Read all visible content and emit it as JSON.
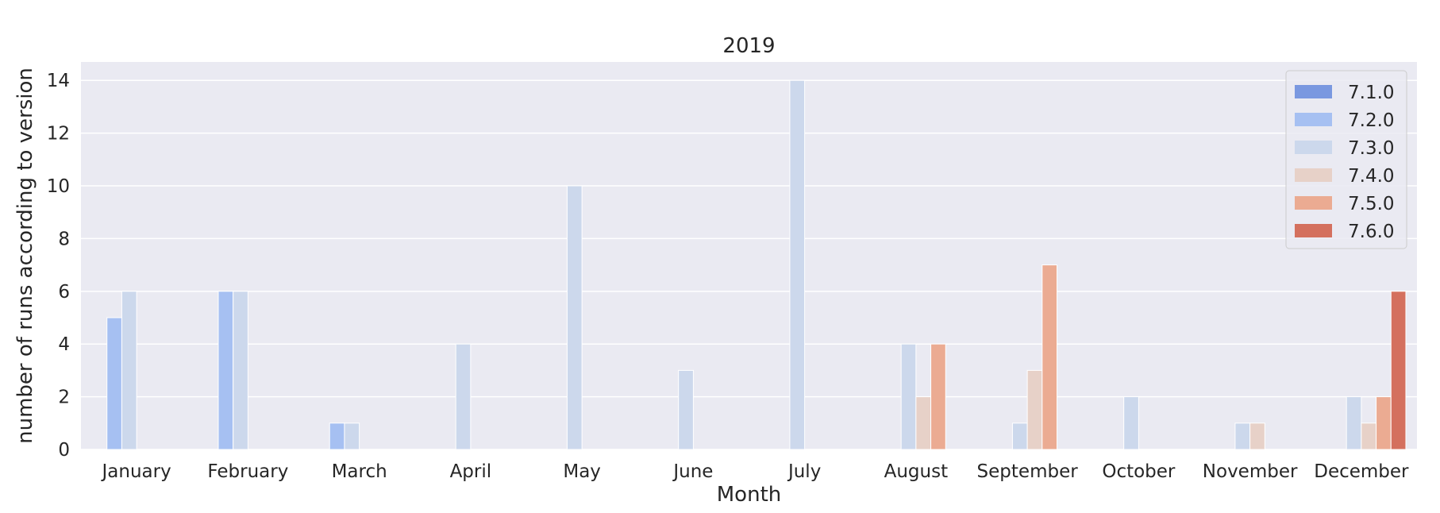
{
  "chart_data": {
    "type": "bar",
    "title": "2019",
    "xlabel": "Month",
    "ylabel": "number of runs according to version",
    "categories": [
      "January",
      "February",
      "March",
      "April",
      "May",
      "June",
      "July",
      "August",
      "September",
      "October",
      "November",
      "December"
    ],
    "ylim": [
      0,
      14.7
    ],
    "yticks": [
      0,
      2,
      4,
      6,
      8,
      10,
      12,
      14
    ],
    "grid": true,
    "legend_position": "top-right",
    "series": [
      {
        "name": "7.1.0",
        "color": "#7a98e0",
        "values": [
          0,
          0,
          0,
          0,
          0,
          0,
          0,
          0,
          0,
          0,
          0,
          0
        ]
      },
      {
        "name": "7.2.0",
        "color": "#a6c0f2",
        "values": [
          5,
          6,
          1,
          0,
          0,
          0,
          0,
          0,
          0,
          0,
          0,
          0
        ]
      },
      {
        "name": "7.3.0",
        "color": "#ccd8ec",
        "values": [
          6,
          6,
          1,
          4,
          10,
          3,
          14,
          4,
          1,
          2,
          1,
          2
        ]
      },
      {
        "name": "7.4.0",
        "color": "#e7d1c8",
        "values": [
          0,
          0,
          0,
          0,
          0,
          0,
          0,
          2,
          3,
          0,
          1,
          1
        ]
      },
      {
        "name": "7.5.0",
        "color": "#ebab92",
        "values": [
          0,
          0,
          0,
          0,
          0,
          0,
          0,
          4,
          7,
          0,
          0,
          2
        ]
      },
      {
        "name": "7.6.0",
        "color": "#d4705e",
        "values": [
          0,
          0,
          0,
          0,
          0,
          0,
          0,
          0,
          0,
          0,
          0,
          6
        ]
      }
    ]
  },
  "colors": {
    "plot_background": "#eaeaf2",
    "grid": "#ffffff",
    "text": "#262626"
  }
}
